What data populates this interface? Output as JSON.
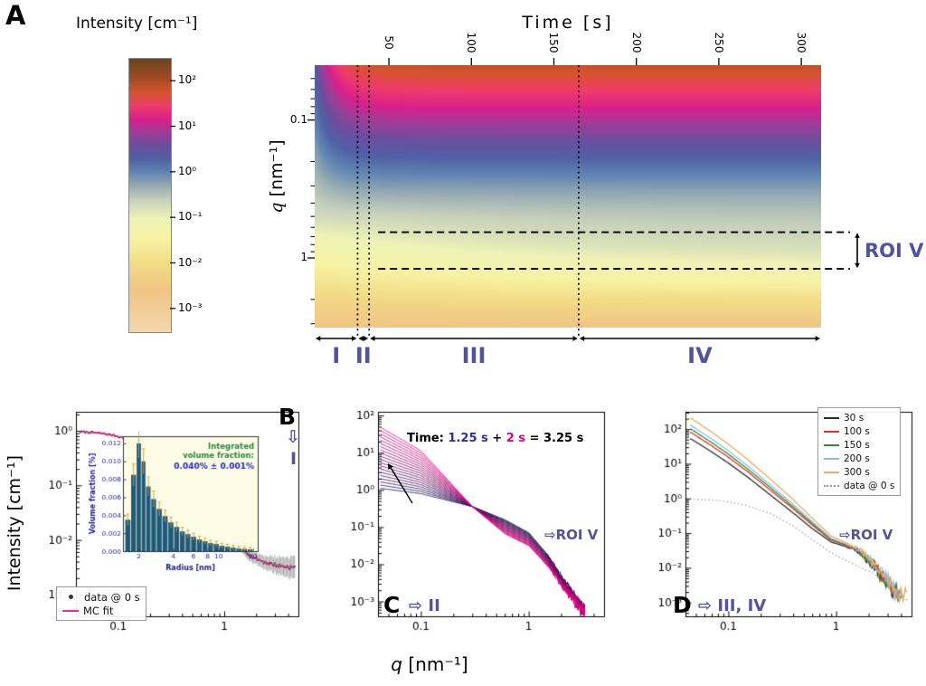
{
  "figure": {
    "panel_a_label": "A",
    "panel_b_label": "B",
    "panel_c_label": "C",
    "panel_d_label": "D",
    "colorbar_title": "Intensity [cm⁻¹]",
    "time_axis_title": "Time [s]",
    "a_y_label_italic": "q",
    "a_y_label_rest": " [nm⁻¹]",
    "roi_label": "ROI V",
    "b_arrow": "⇩",
    "b_region": "I",
    "region_pointer": "⇨",
    "c_region_text": "II",
    "d_region_text": "III, IV",
    "roi_pointer": "⇨",
    "roi_pointer_label": "ROI V",
    "intensity_y_label": "Intensity [cm⁻¹]",
    "x_axis_italic": "q",
    "x_axis_rest": " [nm⁻¹]",
    "time_annotation": {
      "pre": "Time: ",
      "t1": "1.25 s",
      "plus": " + ",
      "t2": "2 s",
      "eq": " = 3.25 s"
    },
    "colors": {
      "annotation_purple": "#5252a2",
      "fit_magenta": "#e8308a",
      "time_blue": "#2d2d9e",
      "time_magenta": "#e4007e"
    }
  },
  "chart_data": {
    "heatmap": {
      "type": "heatmap",
      "x_label": "Time [s]",
      "y_label": "q [nm⁻¹]",
      "t_range": [
        5,
        312
      ],
      "q_range": [
        0.04,
        3.2
      ],
      "t_ticks": [
        50,
        100,
        150,
        200,
        250,
        300
      ],
      "q_ticks": [
        0.1,
        1
      ],
      "q_tick_labels": [
        "0.1",
        "1"
      ],
      "q_minor_ticks": [
        0.05,
        0.06,
        0.07,
        0.08,
        0.09,
        0.2,
        0.3,
        0.4,
        0.5,
        0.6,
        0.7,
        0.8,
        0.9,
        2,
        3
      ],
      "colorbar_title": "Intensity [cm⁻¹]",
      "colorbar_exps": [
        2,
        1,
        0,
        -1,
        -2,
        -3
      ],
      "colorbar_tick_labels": [
        "10²",
        "10¹",
        "10⁰",
        "10⁻¹",
        "10⁻²",
        "10⁻³"
      ],
      "colorbar_range_exp": [
        -3.5,
        2.5
      ],
      "colormap": [
        [
          -3.5,
          "#f4d8ae"
        ],
        [
          -2.6,
          "#f0c584"
        ],
        [
          -2.0,
          "#f2dc86"
        ],
        [
          -1.5,
          "#f7f2a2"
        ],
        [
          -1.0,
          "#eef2b6"
        ],
        [
          -0.6,
          "#c8d2ba"
        ],
        [
          -0.25,
          "#90a6b2"
        ],
        [
          0.0,
          "#6386b2"
        ],
        [
          0.3,
          "#4f62a6"
        ],
        [
          0.6,
          "#6a4f9e"
        ],
        [
          0.9,
          "#a03d98"
        ],
        [
          1.15,
          "#d6208c"
        ],
        [
          1.45,
          "#ee3a6e"
        ],
        [
          1.75,
          "#d8542e"
        ],
        [
          2.1,
          "#a04c26"
        ],
        [
          2.5,
          "#6e441e"
        ]
      ],
      "model": {
        "slope": -2.37,
        "intercept": -1.42,
        "low_u": -0.3,
        "low_width": 1.1,
        "depth": 2.2,
        "tau1": 12,
        "bump_amp": 0.55,
        "tau2": 120,
        "bump_u": 0.0,
        "bump_w": 0.22
      },
      "roi_q": [
        0.65,
        1.2
      ],
      "roi_label": "ROI V",
      "region_boundaries_t": [
        5,
        31,
        38,
        165,
        312
      ],
      "regions": [
        "I",
        "II",
        "III",
        "IV"
      ]
    },
    "panel_b": {
      "type": "scatter",
      "xlim": [
        0.04,
        5
      ],
      "x_ticks": [
        0.1,
        1
      ],
      "x_tick_labels": [
        "0.1",
        "1"
      ],
      "ylim_exp": [
        -3.4,
        0.35
      ],
      "y_tick_exps": [
        0,
        -1,
        -2,
        -3
      ],
      "y_tick_labels": [
        "10⁰",
        "10⁻¹",
        "10⁻²",
        "10⁻³"
      ],
      "series": {
        "name": "data @ 0 s",
        "color": "#3a3a3a",
        "q": [
          0.045,
          0.055,
          0.07,
          0.09,
          0.12,
          0.16,
          0.21,
          0.28,
          0.38,
          0.5,
          0.65,
          0.85,
          1.1,
          1.4,
          1.8,
          2.4,
          3.2,
          4.5
        ],
        "I": [
          0.96,
          0.94,
          0.9,
          0.83,
          0.72,
          0.58,
          0.43,
          0.3,
          0.185,
          0.105,
          0.055,
          0.026,
          0.013,
          0.0075,
          0.005,
          0.0039,
          0.0034,
          0.0031
        ]
      },
      "fit": {
        "name": "MC fit",
        "color": "#e8308a"
      },
      "legend": [
        {
          "label": "data @ 0 s",
          "marker": "dot",
          "color": "#3a3a3a"
        },
        {
          "label": "MC fit",
          "marker": "line",
          "color": "#e8308a"
        }
      ],
      "inset": {
        "type": "bar",
        "bg": "#fcfbe4",
        "bar_color": "#1f5a7a",
        "err_color": "#cf9e2e",
        "xlim": [
          1.45,
          22
        ],
        "x_ticks": [
          2,
          4,
          6,
          8,
          10,
          20
        ],
        "ylim": [
          0,
          0.0128
        ],
        "y_ticks": [
          0,
          0.002,
          0.004,
          0.006,
          0.008,
          0.01,
          0.012
        ],
        "x_label": "Radius [nm]",
        "y_label": "Volume fraction [%]",
        "radius": [
          1.6,
          1.8,
          2.0,
          2.2,
          2.4,
          2.7,
          3.0,
          3.4,
          3.8,
          4.3,
          4.8,
          5.4,
          6.0,
          6.8,
          7.6,
          8.5,
          9.5,
          10.7,
          12.0,
          13.4,
          15.0,
          16.8,
          18.8
        ],
        "vf": [
          0.0035,
          0.0085,
          0.012,
          0.01,
          0.0072,
          0.0058,
          0.0047,
          0.0039,
          0.0032,
          0.0027,
          0.0022,
          0.0019,
          0.0016,
          0.0013,
          0.0011,
          0.0009,
          0.0008,
          0.0006,
          0.0005,
          0.0004,
          0.0003,
          0.00025,
          0.0002
        ],
        "ann_lines": [
          "Integrated",
          "volume fraction:"
        ],
        "ann_value": "0.040% ± 0.001%",
        "ann_color": "#1f8a3a",
        "value_color": "#2525c8"
      }
    },
    "panel_c": {
      "type": "line-family",
      "xlim": [
        0.04,
        5
      ],
      "x_ticks": [
        0.1,
        1
      ],
      "x_tick_labels": [
        "0.1",
        "1"
      ],
      "ylim_exp": [
        -3.4,
        2.1
      ],
      "y_tick_exps": [
        2,
        1,
        0,
        -1,
        -2,
        -3
      ],
      "y_tick_labels": [
        "10²",
        "10¹",
        "10⁰",
        "10⁻¹",
        "10⁻²",
        "10⁻³"
      ],
      "n_curves": 20,
      "time_start": "1.25 s",
      "time_step": "2 s",
      "time_end": "3.25 s",
      "color_start": "#141450",
      "color_end": "#e4007e",
      "q_anchors": [
        0.04,
        0.1,
        0.3,
        0.6,
        1.0,
        1.5,
        2.2,
        3.2
      ],
      "logI_first": [
        0.05,
        -0.1,
        -0.45,
        -0.8,
        -1.15,
        -1.75,
        -2.5,
        -3.2
      ],
      "logI_last": [
        1.72,
        1.05,
        -0.45,
        -1.18,
        -1.5,
        -2.05,
        -2.7,
        -3.3
      ],
      "noise_q": 1.3,
      "noise_gain": 0.5
    },
    "panel_d": {
      "type": "line",
      "xlim": [
        0.04,
        5
      ],
      "x_ticks": [
        0.1,
        1
      ],
      "x_tick_labels": [
        "0.1",
        "1"
      ],
      "ylim_exp": [
        -3.4,
        2.5
      ],
      "y_tick_exps": [
        2,
        1,
        0,
        -1,
        -2,
        -3
      ],
      "y_tick_labels": [
        "10²",
        "10¹",
        "10⁰",
        "10⁻¹",
        "10⁻²",
        "10⁻³"
      ],
      "noise_q": 1.2,
      "noise_gain": 0.55,
      "q_common": [
        0.045,
        0.07,
        0.1,
        0.15,
        0.25,
        0.4,
        0.6,
        0.9,
        1.2,
        1.6,
        2.2,
        3.0,
        4.0
      ],
      "series": [
        {
          "name": "30 s",
          "color": "#2b2b2b",
          "style": "solid",
          "I": [
            52,
            22,
            10.5,
            4.2,
            1.2,
            0.38,
            0.135,
            0.055,
            0.042,
            0.03,
            0.012,
            0.0035,
            0.0012
          ]
        },
        {
          "name": "100 s",
          "color": "#e03127",
          "style": "solid",
          "I": [
            80,
            33,
            15.5,
            6.0,
            1.65,
            0.5,
            0.17,
            0.062,
            0.046,
            0.032,
            0.013,
            0.004,
            0.0013
          ]
        },
        {
          "name": "150 s",
          "color": "#2e8b2e",
          "style": "solid",
          "I": [
            100,
            41,
            19,
            7.2,
            1.95,
            0.57,
            0.19,
            0.066,
            0.048,
            0.033,
            0.013,
            0.004,
            0.0012
          ]
        },
        {
          "name": "200 s",
          "color": "#8fbbe8",
          "style": "solid",
          "I": [
            128,
            52,
            24,
            8.9,
            2.35,
            0.67,
            0.215,
            0.07,
            0.05,
            0.034,
            0.014,
            0.0042,
            0.0013
          ]
        },
        {
          "name": "300 s",
          "color": "#f2a95c",
          "style": "solid",
          "I": [
            205,
            82,
            37,
            13.5,
            3.4,
            0.92,
            0.27,
            0.082,
            0.055,
            0.036,
            0.015,
            0.0045,
            0.0014
          ]
        },
        {
          "name": "data @ 0 s",
          "color": "#9a9a9a",
          "style": "dotted",
          "I": [
            0.95,
            0.9,
            0.8,
            0.62,
            0.36,
            0.16,
            0.065,
            0.027,
            0.017,
            0.011,
            0.007,
            0.003,
            0.0012
          ]
        }
      ]
    }
  }
}
